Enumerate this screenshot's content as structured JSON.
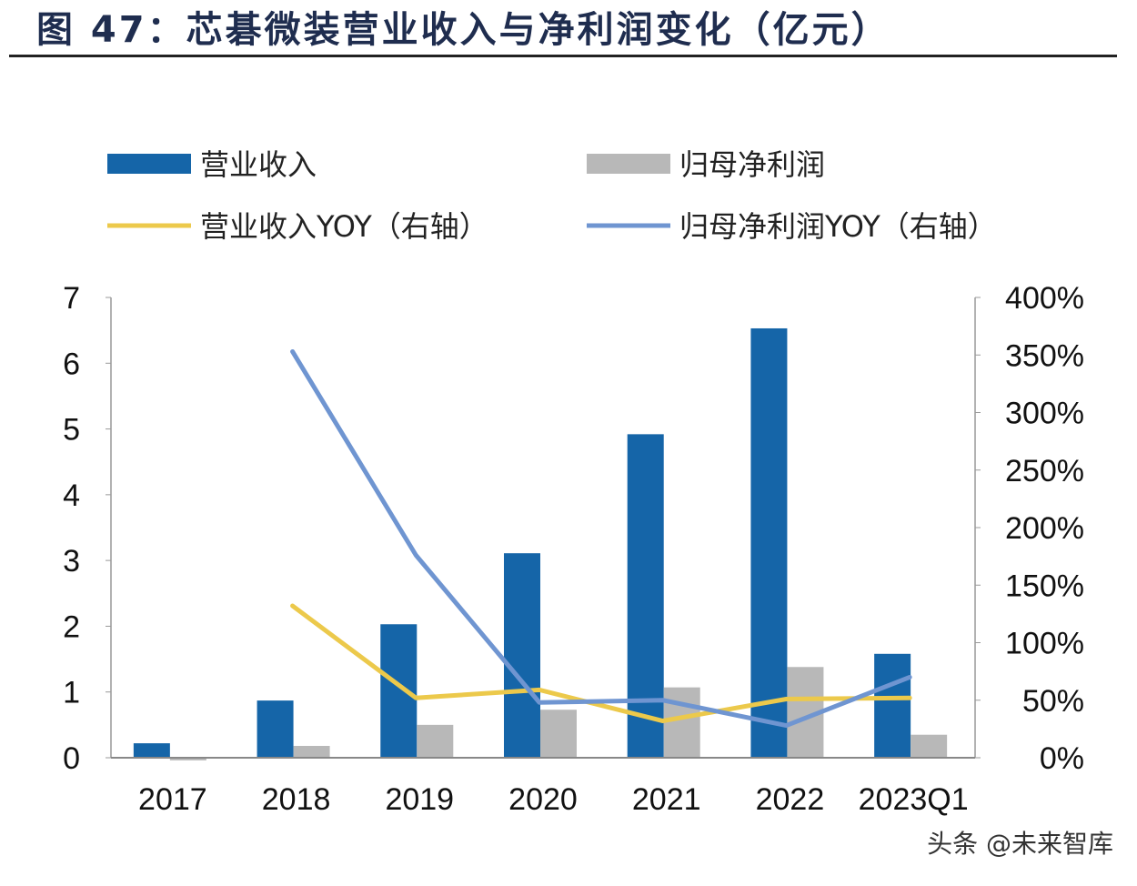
{
  "title": "图 47：芯碁微装营业收入与净利润变化（亿元）",
  "watermark": "头条 @未来智库",
  "chart_data": {
    "type": "bar",
    "title": "图 47：芯碁微装营业收入与净利润变化（亿元）",
    "categories": [
      "2017",
      "2018",
      "2019",
      "2020",
      "2021",
      "2022",
      "2023Q1"
    ],
    "series": [
      {
        "name": "营业收入",
        "type": "bar",
        "axis": "left",
        "color": "#1565a8",
        "values": [
          0.22,
          0.87,
          2.03,
          3.11,
          4.92,
          6.53,
          1.58
        ]
      },
      {
        "name": "归母净利润",
        "type": "bar",
        "axis": "left",
        "color": "#b8b8b8",
        "values": [
          -0.04,
          0.18,
          0.5,
          0.73,
          1.07,
          1.38,
          0.35
        ]
      },
      {
        "name": "营业收入YOY（右轴）",
        "type": "line",
        "axis": "right",
        "color": "#ecc94b",
        "values": [
          null,
          132,
          52,
          59,
          32,
          51,
          52
        ]
      },
      {
        "name": "归母净利润YOY（右轴）",
        "type": "line",
        "axis": "right",
        "color": "#6f95d1",
        "values": [
          null,
          353,
          176,
          48,
          50,
          28,
          70
        ]
      }
    ],
    "left_axis": {
      "ylim": [
        0,
        7
      ],
      "ticks": [
        "0",
        "1",
        "2",
        "3",
        "4",
        "5",
        "6",
        "7"
      ]
    },
    "right_axis": {
      "ylim": [
        0,
        400
      ],
      "ticks": [
        "0%",
        "50%",
        "100%",
        "150%",
        "200%",
        "250%",
        "300%",
        "350%",
        "400%"
      ]
    },
    "legend": "top",
    "grid": false
  }
}
